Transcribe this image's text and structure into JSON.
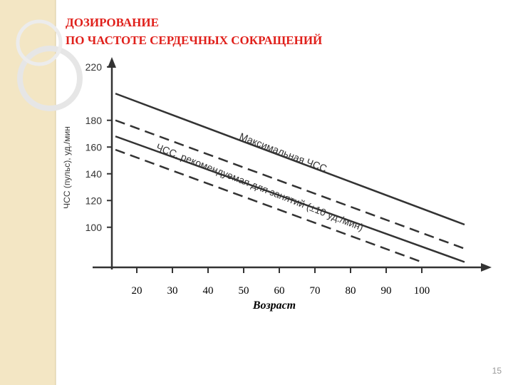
{
  "slide": {
    "title_lines": [
      "ДОЗИРОВАНИЕ",
      "ПО ЧАСТОТЕ СЕРДЕЧНЫХ СОКРАЩЕНИЙ"
    ],
    "page_number": "15"
  },
  "chart_data": {
    "type": "line",
    "ylabel": "ЧСС (пульс), уд./мин",
    "xlabel": "Возраст",
    "xlim": [
      13,
      118
    ],
    "ylim": [
      70,
      230
    ],
    "xticks": [
      20,
      30,
      40,
      50,
      60,
      70,
      80,
      90,
      100
    ],
    "yticks": [
      100,
      120,
      140,
      160,
      180,
      220
    ],
    "annotations": [
      "Максимальная ЧСС",
      "ЧСС, рекомендуемая для занятий (±10 уд./мин)"
    ],
    "series": [
      {
        "x": [
          14,
          112
        ],
        "values": [
          200,
          102
        ],
        "color": "#333333",
        "style": "solid"
      },
      {
        "x": [
          14,
          112
        ],
        "values": [
          180,
          84
        ],
        "color": "#333333",
        "style": "dashed"
      },
      {
        "x": [
          14,
          112
        ],
        "values": [
          168,
          74
        ],
        "color": "#333333",
        "style": "solid"
      },
      {
        "x": [
          14,
          100
        ],
        "values": [
          158,
          74
        ],
        "color": "#333333",
        "style": "dashed"
      }
    ]
  }
}
